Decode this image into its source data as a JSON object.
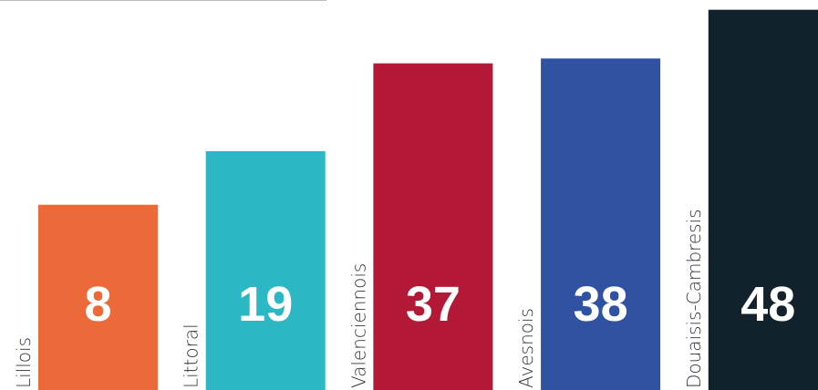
{
  "chart_data": {
    "type": "bar",
    "categories": [
      "Lillois",
      "Littoral",
      "Valenciennois",
      "Avesnois",
      "Douaisis-Cambresis"
    ],
    "values": [
      8,
      19,
      37,
      38,
      48
    ],
    "colors": [
      "#ec6a3a",
      "#2bb7c4",
      "#b31937",
      "#2f53a2",
      "#12222d"
    ],
    "ylim": [
      -30,
      50
    ]
  }
}
